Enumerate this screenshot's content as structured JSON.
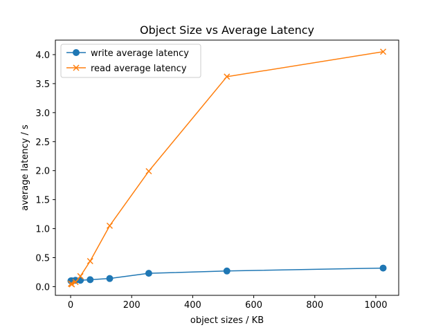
{
  "chart_data": {
    "type": "line",
    "title": "Object Size vs Average Latency",
    "xlabel": "object sizes / KB",
    "ylabel": "average latency / s",
    "xlim": [
      -50,
      1075
    ],
    "ylim": [
      -0.15,
      4.25
    ],
    "xticks": [
      0,
      200,
      400,
      600,
      800,
      1000
    ],
    "yticks": [
      0.0,
      0.5,
      1.0,
      1.5,
      2.0,
      2.5,
      3.0,
      3.5,
      4.0
    ],
    "ytick_labels": [
      "0.0",
      "0.5",
      "1.0",
      "1.5",
      "2.0",
      "2.5",
      "3.0",
      "3.5",
      "4.0"
    ],
    "grid": false,
    "legend_position": "upper-left",
    "series": [
      {
        "name": "write average latency",
        "color": "#1f77b4",
        "marker": "circle",
        "x": [
          1,
          4,
          16,
          32,
          64,
          128,
          256,
          512,
          1024
        ],
        "y": [
          0.1,
          0.1,
          0.11,
          0.11,
          0.12,
          0.14,
          0.23,
          0.27,
          0.32
        ]
      },
      {
        "name": "read average latency",
        "color": "#ff7f0e",
        "marker": "x",
        "x": [
          1,
          4,
          16,
          32,
          64,
          128,
          256,
          512,
          1024
        ],
        "y": [
          0.05,
          0.04,
          0.08,
          0.18,
          0.44,
          1.05,
          1.99,
          3.62,
          4.05
        ]
      }
    ]
  }
}
